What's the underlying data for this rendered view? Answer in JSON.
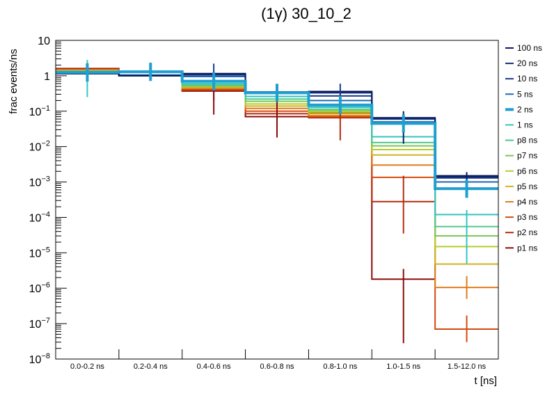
{
  "chart_data": {
    "type": "line",
    "title": "(1γ) 30_10_2",
    "xlabel": "t [ns]",
    "ylabel": "frac events/ns",
    "yscale": "log",
    "ylim": [
      1e-08,
      10
    ],
    "categories": [
      "0.0-0.2 ns",
      "0.2-0.4 ns",
      "0.4-0.6 ns",
      "0.6-0.8 ns",
      "0.8-1.0 ns",
      "1.0-1.5 ns",
      "1.5-12.0 ns"
    ],
    "y_ticks": [
      {
        "value": 10,
        "base": "10",
        "exp": ""
      },
      {
        "value": 1,
        "base": "1",
        "exp": ""
      },
      {
        "value": 0.1,
        "base": "10",
        "exp": "−1"
      },
      {
        "value": 0.01,
        "base": "10",
        "exp": "−2"
      },
      {
        "value": 0.001,
        "base": "10",
        "exp": "−3"
      },
      {
        "value": 0.0001,
        "base": "10",
        "exp": "−4"
      },
      {
        "value": 1e-05,
        "base": "10",
        "exp": "−5"
      },
      {
        "value": 1e-06,
        "base": "10",
        "exp": "−6"
      },
      {
        "value": 1e-07,
        "base": "10",
        "exp": "−7"
      },
      {
        "value": 1e-08,
        "base": "10",
        "exp": "−8"
      }
    ],
    "legend_position": "right",
    "series": [
      {
        "name": "100 ns",
        "color": "#0b1a5a",
        "values": [
          1.15,
          1.0,
          1.15,
          0.35,
          0.36,
          0.065,
          0.0015
        ]
      },
      {
        "name": "20 ns",
        "color": "#102a78",
        "values": [
          1.15,
          1.0,
          1.12,
          0.34,
          0.33,
          0.063,
          0.0014
        ]
      },
      {
        "name": "10 ns",
        "color": "#173a8c",
        "values": [
          1.15,
          1.0,
          1.05,
          0.33,
          0.27,
          0.06,
          0.0013
        ]
      },
      {
        "name": "5 ns",
        "color": "#1f66b0",
        "values": [
          1.2,
          1.05,
          0.95,
          0.32,
          0.2,
          0.05,
          0.001
        ]
      },
      {
        "name": "2 ns",
        "color": "#1e9fd0",
        "values": [
          1.25,
          1.3,
          0.7,
          0.33,
          0.15,
          0.045,
          0.00065
        ]
      },
      {
        "name": "1 ns",
        "color": "#33c4c4",
        "values": [
          1.3,
          1.25,
          0.6,
          0.26,
          0.13,
          0.019,
          0.00012
        ]
      },
      {
        "name": "p8 ns",
        "color": "#4ec88e",
        "values": [
          1.3,
          1.25,
          0.55,
          0.22,
          0.115,
          0.013,
          5.5e-05
        ]
      },
      {
        "name": "p7 ns",
        "color": "#7ac858",
        "values": [
          1.35,
          1.25,
          0.52,
          0.19,
          0.105,
          0.0105,
          3e-05
        ]
      },
      {
        "name": "p6 ns",
        "color": "#b4cf2c",
        "values": [
          1.35,
          1.25,
          0.5,
          0.16,
          0.095,
          0.0082,
          1.5e-05
        ]
      },
      {
        "name": "p5 ns",
        "color": "#d0b320",
        "values": [
          1.4,
          1.25,
          0.47,
          0.14,
          0.085,
          0.0058,
          4.8e-06
        ]
      },
      {
        "name": "p4 ns",
        "color": "#e07d1a",
        "values": [
          1.45,
          1.25,
          0.44,
          0.12,
          0.075,
          0.003,
          1.05e-06
        ]
      },
      {
        "name": "p3 ns",
        "color": "#d44a10",
        "values": [
          1.5,
          1.25,
          0.41,
          0.1,
          0.07,
          0.00135,
          7e-08
        ]
      },
      {
        "name": "p2 ns",
        "color": "#b52a0a",
        "values": [
          1.55,
          1.25,
          0.39,
          0.085,
          0.065,
          0.00028,
          null
        ]
      },
      {
        "name": "p1 ns",
        "color": "#8c0a08",
        "values": [
          1.6,
          1.25,
          0.37,
          0.07,
          0.09,
          1.8e-06,
          null
        ]
      }
    ],
    "highlight_series": "2 ns",
    "error_bars": [
      {
        "series": "10 ns",
        "bin": 2,
        "low": 0.2,
        "high": 2.2
      },
      {
        "series": "1 ns",
        "bin": 0,
        "low": 0.25,
        "high": 2.8
      },
      {
        "series": "p1 ns",
        "bin": 0,
        "low": 1.2,
        "high": 2.2
      },
      {
        "series": "p1 ns",
        "bin": 1,
        "low": 1.0,
        "high": 2.0
      },
      {
        "series": "p1 ns",
        "bin": 2,
        "low": 0.08,
        "high": 0.9
      },
      {
        "series": "p1 ns",
        "bin": 3,
        "low": 0.018,
        "high": 0.3
      },
      {
        "series": "p2 ns",
        "bin": 4,
        "low": 0.015,
        "high": 0.35
      },
      {
        "series": "10 ns",
        "bin": 4,
        "low": 0.1,
        "high": 0.6
      },
      {
        "series": "100 ns",
        "bin": 5,
        "low": 0.012,
        "high": 0.1
      },
      {
        "series": "p2 ns",
        "bin": 5,
        "low": 3.5e-05,
        "high": 0.0015
      },
      {
        "series": "p1 ns",
        "bin": 5,
        "low": 2.8e-08,
        "high": 3.5e-06
      },
      {
        "series": "100 ns",
        "bin": 6,
        "low": 0.00045,
        "high": 0.0019
      },
      {
        "series": "1 ns",
        "bin": 6,
        "low": 5e-06,
        "high": 0.00016
      },
      {
        "series": "p4 ns",
        "bin": 6,
        "low": 5e-07,
        "high": 2.2e-06
      },
      {
        "series": "p3 ns",
        "bin": 6,
        "low": 3e-08,
        "high": 1.7e-07
      }
    ]
  }
}
